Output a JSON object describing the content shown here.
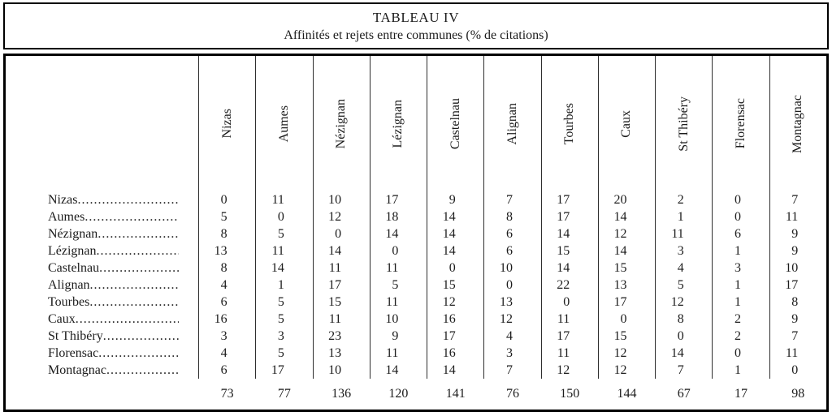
{
  "title": "TABLEAU IV",
  "subtitle": "Affinités et rejets entre communes (% de citations)",
  "table": {
    "columns": [
      "Nizas",
      "Aumes",
      "Nézignan",
      "Lézignan",
      "Castelnau",
      "Alignan",
      "Tourbes",
      "Caux",
      "St Thibéry",
      "Florensac",
      "Montagnac"
    ],
    "rows": [
      {
        "label": "Nizas",
        "values": [
          0,
          11,
          10,
          17,
          9,
          7,
          17,
          20,
          2,
          0,
          7
        ]
      },
      {
        "label": "Aumes",
        "values": [
          5,
          0,
          12,
          18,
          14,
          8,
          17,
          14,
          1,
          0,
          11
        ]
      },
      {
        "label": "Nézignan",
        "values": [
          8,
          5,
          0,
          14,
          14,
          6,
          14,
          12,
          11,
          6,
          9
        ]
      },
      {
        "label": "Lézignan",
        "values": [
          13,
          11,
          14,
          0,
          14,
          6,
          15,
          14,
          3,
          1,
          9
        ]
      },
      {
        "label": "Castelnau",
        "values": [
          8,
          14,
          11,
          11,
          0,
          10,
          14,
          15,
          4,
          3,
          10
        ]
      },
      {
        "label": "Alignan",
        "values": [
          4,
          1,
          17,
          5,
          15,
          0,
          22,
          13,
          5,
          1,
          17
        ]
      },
      {
        "label": "Tourbes",
        "values": [
          6,
          5,
          15,
          11,
          12,
          13,
          0,
          17,
          12,
          1,
          8
        ]
      },
      {
        "label": "Caux",
        "values": [
          16,
          5,
          11,
          10,
          16,
          12,
          11,
          0,
          8,
          2,
          9
        ]
      },
      {
        "label": "St Thibéry",
        "values": [
          3,
          3,
          23,
          9,
          17,
          4,
          17,
          15,
          0,
          2,
          7
        ]
      },
      {
        "label": "Florensac",
        "values": [
          4,
          5,
          13,
          11,
          16,
          3,
          11,
          12,
          14,
          0,
          11
        ]
      },
      {
        "label": "Montagnac",
        "values": [
          6,
          17,
          10,
          14,
          14,
          7,
          12,
          12,
          7,
          1,
          0
        ]
      }
    ],
    "totals": [
      73,
      77,
      136,
      120,
      141,
      76,
      150,
      144,
      67,
      17,
      98
    ]
  },
  "style": {
    "text_color": "#1c1c1c",
    "border_color": "#000000",
    "rule_color": "#2e2e2e",
    "background": "#ffffff"
  }
}
